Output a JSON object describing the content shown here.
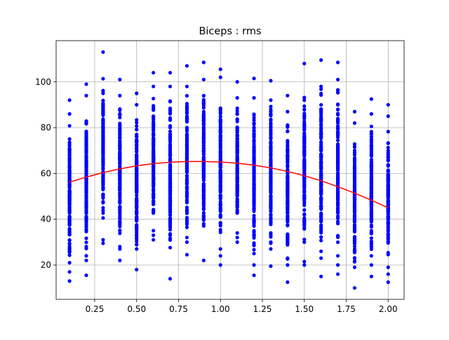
{
  "chart_data": {
    "type": "scatter",
    "title": "Biceps : rms",
    "xlabel": "",
    "ylabel": "",
    "xlim": [
      0.02,
      2.095
    ],
    "ylim": [
      5,
      118
    ],
    "x_ticks": [
      0.25,
      0.5,
      0.75,
      1.0,
      1.25,
      1.5,
      1.75,
      2.0
    ],
    "x_tick_labels": [
      "0.25",
      "0.50",
      "0.75",
      "1.00",
      "1.25",
      "1.50",
      "1.75",
      "2.00"
    ],
    "y_ticks": [
      20,
      40,
      60,
      80,
      100
    ],
    "y_tick_labels": [
      "20",
      "40",
      "60",
      "80",
      "100"
    ],
    "grid": true,
    "series": [
      {
        "kind": "scatter",
        "color": "#0000ff",
        "columns": [
          {
            "x": 0.1,
            "min": 13,
            "max": 92,
            "extremes": [
              13,
              17,
              21,
              86,
              92
            ]
          },
          {
            "x": 0.2,
            "min": 15.5,
            "max": 99,
            "extremes": [
              15.5,
              22,
              24,
              94,
              99
            ]
          },
          {
            "x": 0.3,
            "min": 29.5,
            "max": 113,
            "extremes": [
              29.5,
              31,
              95,
              96,
              113
            ]
          },
          {
            "x": 0.4,
            "min": 22,
            "max": 101,
            "extremes": [
              22,
              27,
              28,
              94,
              101
            ]
          },
          {
            "x": 0.5,
            "min": 18,
            "max": 95,
            "extremes": [
              18,
              27,
              29,
              90,
              95
            ]
          },
          {
            "x": 0.6,
            "min": 31,
            "max": 104,
            "extremes": [
              31,
              33,
              35,
              98,
              104
            ]
          },
          {
            "x": 0.7,
            "min": 14,
            "max": 104,
            "extremes": [
              14,
              31,
              33,
              98,
              104
            ]
          },
          {
            "x": 0.8,
            "min": 24.5,
            "max": 107,
            "extremes": [
              24.5,
              30,
              32,
              98,
              107
            ]
          },
          {
            "x": 0.9,
            "min": 22,
            "max": 108.5,
            "extremes": [
              22,
              38,
              41,
              101,
              108.5
            ]
          },
          {
            "x": 1.0,
            "min": 20,
            "max": 105.5,
            "extremes": [
              20,
              24,
              27,
              102,
              105.5
            ]
          },
          {
            "x": 1.1,
            "min": 30,
            "max": 100,
            "extremes": [
              30,
              32,
              34,
              93,
              100
            ]
          },
          {
            "x": 1.2,
            "min": 15.5,
            "max": 101.5,
            "extremes": [
              15.5,
              20,
              25,
              93,
              101.5
            ]
          },
          {
            "x": 1.3,
            "min": 19.5,
            "max": 100.5,
            "extremes": [
              19.5,
              27,
              30,
              92,
              100.5
            ]
          },
          {
            "x": 1.4,
            "min": 12.5,
            "max": 94,
            "extremes": [
              12.5,
              20,
              23,
              87,
              94
            ]
          },
          {
            "x": 1.5,
            "min": 20,
            "max": 108,
            "extremes": [
              20,
              21.5,
              30,
              92,
              108
            ]
          },
          {
            "x": 1.6,
            "min": 15,
            "max": 109.5,
            "extremes": [
              15,
              23,
              26,
              98,
              109.5
            ]
          },
          {
            "x": 1.7,
            "min": 16,
            "max": 108.5,
            "extremes": [
              16,
              20,
              24,
              101,
              108.5
            ]
          },
          {
            "x": 1.8,
            "min": 10,
            "max": 87,
            "extremes": [
              10,
              19,
              23,
              82,
              87
            ]
          },
          {
            "x": 1.9,
            "min": 15,
            "max": 92.5,
            "extremes": [
              15,
              20,
              24,
              86,
              92.5
            ]
          },
          {
            "x": 2.0,
            "min": 12.5,
            "max": 90,
            "extremes": [
              12.5,
              16,
              19,
              85,
              90
            ]
          }
        ]
      },
      {
        "kind": "line",
        "color": "#ff0000",
        "x": [
          0.1,
          0.2,
          0.3,
          0.4,
          0.5,
          0.6,
          0.7,
          0.8,
          0.9,
          1.0,
          1.1,
          1.2,
          1.3,
          1.4,
          1.5,
          1.6,
          1.7,
          1.8,
          1.9,
          2.0
        ],
        "values": [
          56.2,
          58.4,
          60.4,
          62.0,
          63.3,
          64.3,
          64.9,
          65.2,
          65.2,
          65.0,
          64.5,
          63.6,
          62.4,
          60.9,
          59.0,
          56.8,
          54.2,
          51.4,
          48.3,
          45.0
        ]
      }
    ]
  }
}
